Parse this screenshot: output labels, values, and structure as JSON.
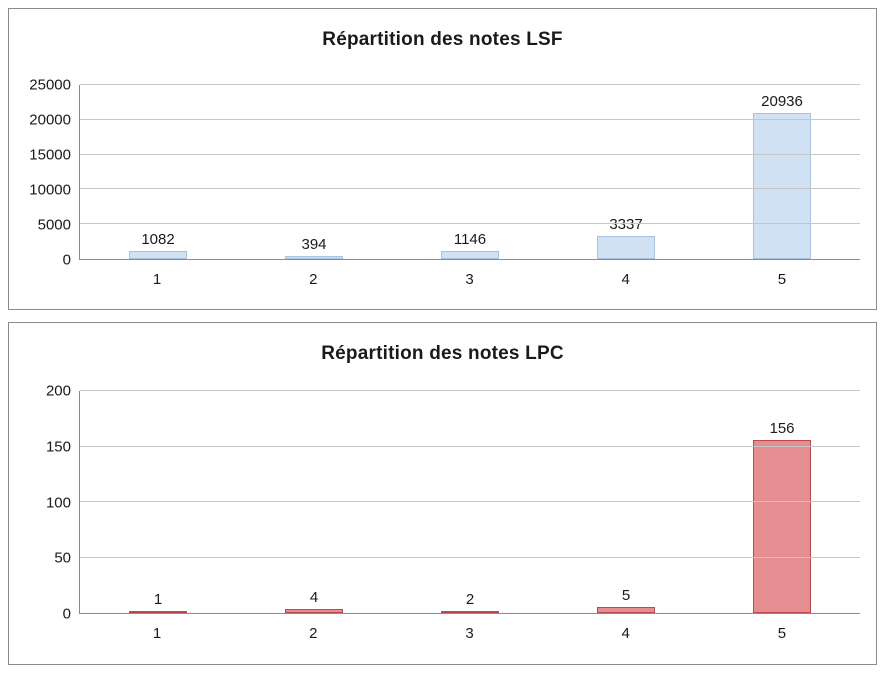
{
  "page": {
    "background": "#ffffff"
  },
  "chart_data": [
    {
      "type": "bar",
      "title": "Répartition des notes LSF",
      "categories": [
        "1",
        "2",
        "3",
        "4",
        "5"
      ],
      "values": [
        1082,
        394,
        1146,
        3337,
        20936
      ],
      "data_labels": [
        1082,
        394,
        1146,
        3337,
        20936
      ],
      "xlabel": "",
      "ylabel": "",
      "ylim": [
        0,
        25000
      ],
      "yticks": [
        0,
        5000,
        10000,
        15000,
        20000,
        25000
      ],
      "grid": true,
      "legend": false,
      "bar_fill": "#cfe1f3",
      "bar_border": "#a7c3e0"
    },
    {
      "type": "bar",
      "title": "Répartition des notes LPC",
      "categories": [
        "1",
        "2",
        "3",
        "4",
        "5"
      ],
      "values": [
        1,
        4,
        2,
        5,
        156
      ],
      "data_labels": [
        1,
        4,
        2,
        5,
        156
      ],
      "xlabel": "",
      "ylabel": "",
      "ylim": [
        0,
        200
      ],
      "yticks": [
        0,
        50,
        100,
        150,
        200
      ],
      "grid": true,
      "legend": false,
      "bar_fill": "#e58e91",
      "bar_border": "#b94a4e"
    }
  ]
}
